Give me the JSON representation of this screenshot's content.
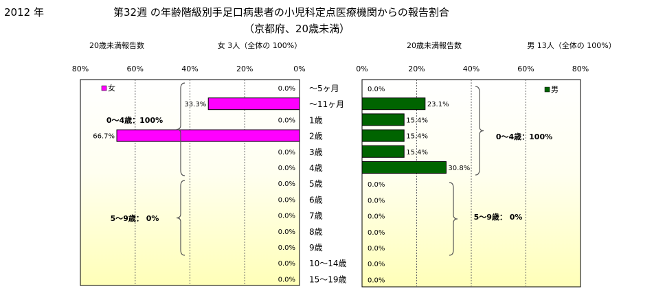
{
  "header": {
    "year": "2012 年",
    "title": "第32週 の年齢階級別手足口病患者の小児科定点医療機関からの報告割合",
    "subtitle": "（京都府、20歳未満）"
  },
  "chart_data": [
    {
      "type": "bar",
      "orientation": "horizontal",
      "direction": "right-to-left",
      "categories": [
        "～5ヶ月",
        "～11ヶ月",
        "1歳",
        "2歳",
        "3歳",
        "4歳",
        "5歳",
        "6歳",
        "7歳",
        "8歳",
        "9歳",
        "10～14歳",
        "15～19歳"
      ],
      "series": [
        {
          "name": "女",
          "values": [
            0,
            33.3,
            0,
            66.7,
            0,
            0,
            0,
            0,
            0,
            0,
            0,
            0,
            0
          ],
          "color": "#ff00ff"
        }
      ],
      "value_labels": [
        "0.0%",
        "33.3%",
        "0.0%",
        "66.7%",
        "0.0%",
        "0.0%",
        "0.0%",
        "0.0%",
        "0.0%",
        "0.0%",
        "0.0%",
        "0.0%",
        "0.0%"
      ],
      "header_left": "20歳未満報告数",
      "header_right": "女 3人（全体の 100%）",
      "ticks": [
        "80%",
        "60%",
        "40%",
        "20%",
        "0%"
      ],
      "xlim": [
        0,
        80
      ],
      "group_labels": [
        "0～4歳：100%",
        "5～9歳： 0%"
      ],
      "legend_position": "top-left",
      "grid": true
    },
    {
      "type": "bar",
      "orientation": "horizontal",
      "direction": "left-to-right",
      "categories": [
        "～5ヶ月",
        "～11ヶ月",
        "1歳",
        "2歳",
        "3歳",
        "4歳",
        "5歳",
        "6歳",
        "7歳",
        "8歳",
        "9歳",
        "10～14歳",
        "15～19歳"
      ],
      "series": [
        {
          "name": "男",
          "values": [
            0,
            23.1,
            15.4,
            15.4,
            15.4,
            30.8,
            0,
            0,
            0,
            0,
            0,
            0,
            0
          ],
          "color": "#006400"
        }
      ],
      "value_labels": [
        "0.0%",
        "23.1%",
        "15.4%",
        "15.4%",
        "15.4%",
        "30.8%",
        "0.0%",
        "0.0%",
        "0.0%",
        "0.0%",
        "0.0%",
        "0.0%",
        "0.0%"
      ],
      "header_left": "20歳未満報告数",
      "header_right": "男 13人（全体の 100%）",
      "ticks": [
        "0%",
        "20%",
        "40%",
        "60%",
        "80%"
      ],
      "xlim": [
        0,
        80
      ],
      "group_labels": [
        "0～4歳：100%",
        "5～9歳： 0%"
      ],
      "legend_position": "top-right",
      "grid": true
    }
  ]
}
